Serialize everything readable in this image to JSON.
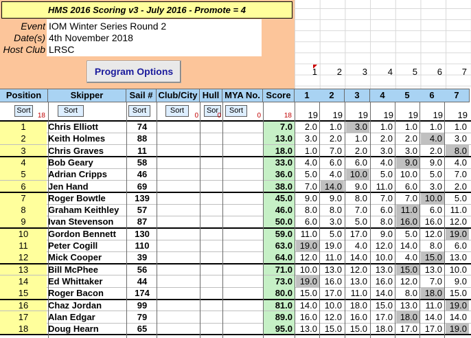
{
  "header": {
    "title": "HMS 2016 Scoring v3 - July 2016 - Promote = 4",
    "event_label": "Event",
    "event_value": "IOM Winter Series Round 2",
    "dates_label": "Date(s)",
    "dates_value": "4th November 2018",
    "club_label": "Host Club",
    "club_value": "LRSC",
    "program_button": "Program Options"
  },
  "race_numbers": [
    "1",
    "2",
    "3",
    "4",
    "5",
    "6",
    "7"
  ],
  "columns": {
    "position": "Position",
    "skipper": "Skipper",
    "sail": "Sail #",
    "club": "Club/City",
    "hull": "Hull",
    "mya": "MYA No.",
    "score": "Score",
    "races": [
      "1",
      "2",
      "3",
      "4",
      "5",
      "6",
      "7"
    ]
  },
  "sort": {
    "label": "Sort",
    "short_label": "Sor",
    "position_count": "18",
    "club_count": "0",
    "hull_count": "0",
    "mya_count": "0",
    "score_count": "18",
    "race_counts": [
      "19",
      "19",
      "19",
      "19",
      "19",
      "19",
      "19"
    ]
  },
  "rows": [
    {
      "pos": "1",
      "skipper": "Chris Elliott",
      "sail": "74",
      "score": "7.0",
      "races": [
        "2.0",
        "1.0",
        "3.0",
        "1.0",
        "1.0",
        "1.0",
        "1.0"
      ],
      "disc": 2
    },
    {
      "pos": "2",
      "skipper": "Keith Holmes",
      "sail": "88",
      "score": "13.0",
      "races": [
        "3.0",
        "2.0",
        "1.0",
        "2.0",
        "2.0",
        "4.0",
        "3.0"
      ],
      "disc": 5
    },
    {
      "pos": "3",
      "skipper": "Chris Graves",
      "sail": "11",
      "score": "18.0",
      "races": [
        "1.0",
        "7.0",
        "2.0",
        "3.0",
        "3.0",
        "2.0",
        "8.0"
      ],
      "disc": 6
    },
    {
      "pos": "4",
      "skipper": "Bob Geary",
      "sail": "58",
      "score": "33.0",
      "races": [
        "4.0",
        "6.0",
        "6.0",
        "4.0",
        "9.0",
        "9.0",
        "4.0"
      ],
      "disc": 4
    },
    {
      "pos": "5",
      "skipper": "Adrian Cripps",
      "sail": "46",
      "score": "36.0",
      "races": [
        "5.0",
        "4.0",
        "10.0",
        "5.0",
        "10.0",
        "5.0",
        "7.0"
      ],
      "disc": 2
    },
    {
      "pos": "6",
      "skipper": "Jen Hand",
      "sail": "69",
      "score": "38.0",
      "races": [
        "7.0",
        "14.0",
        "9.0",
        "11.0",
        "6.0",
        "3.0",
        "2.0"
      ],
      "disc": 1
    },
    {
      "pos": "7",
      "skipper": "Roger Bowtle",
      "sail": "139",
      "score": "45.0",
      "races": [
        "9.0",
        "9.0",
        "8.0",
        "7.0",
        "7.0",
        "10.0",
        "5.0"
      ],
      "disc": 5
    },
    {
      "pos": "8",
      "skipper": "Graham Keithley",
      "sail": "57",
      "score": "46.0",
      "races": [
        "8.0",
        "8.0",
        "7.0",
        "6.0",
        "11.0",
        "6.0",
        "11.0"
      ],
      "disc": 4
    },
    {
      "pos": "9",
      "skipper": "Ivan Stevenson",
      "sail": "87",
      "score": "50.0",
      "races": [
        "6.0",
        "3.0",
        "5.0",
        "8.0",
        "16.0",
        "16.0",
        "12.0"
      ],
      "disc": 4
    },
    {
      "pos": "10",
      "skipper": "Gordon Bennett",
      "sail": "130",
      "score": "59.0",
      "races": [
        "11.0",
        "5.0",
        "17.0",
        "9.0",
        "5.0",
        "12.0",
        "19.0"
      ],
      "disc": 6
    },
    {
      "pos": "11",
      "skipper": "Peter Cogill",
      "sail": "110",
      "score": "63.0",
      "races": [
        "19.0",
        "19.0",
        "4.0",
        "12.0",
        "14.0",
        "8.0",
        "6.0"
      ],
      "disc": 0
    },
    {
      "pos": "12",
      "skipper": "Mick Cooper",
      "sail": "39",
      "score": "64.0",
      "races": [
        "12.0",
        "11.0",
        "14.0",
        "10.0",
        "4.0",
        "15.0",
        "13.0"
      ],
      "disc": 5
    },
    {
      "pos": "13",
      "skipper": "Bill McPhee",
      "sail": "56",
      "score": "71.0",
      "races": [
        "10.0",
        "13.0",
        "12.0",
        "13.0",
        "15.0",
        "13.0",
        "10.0"
      ],
      "disc": 4
    },
    {
      "pos": "14",
      "skipper": "Ed Whittaker",
      "sail": "44",
      "score": "73.0",
      "races": [
        "19.0",
        "16.0",
        "13.0",
        "16.0",
        "12.0",
        "7.0",
        "9.0"
      ],
      "disc": 0
    },
    {
      "pos": "15",
      "skipper": "Roger Bacon",
      "sail": "174",
      "score": "80.0",
      "races": [
        "15.0",
        "17.0",
        "11.0",
        "14.0",
        "8.0",
        "18.0",
        "15.0"
      ],
      "disc": 5
    },
    {
      "pos": "16",
      "skipper": "Chaz  Jordan",
      "sail": "99",
      "score": "81.0",
      "races": [
        "14.0",
        "10.0",
        "18.0",
        "15.0",
        "13.0",
        "11.0",
        "19.0"
      ],
      "disc": 6
    },
    {
      "pos": "17",
      "skipper": "Alan Edgar",
      "sail": "79",
      "score": "89.0",
      "races": [
        "16.0",
        "12.0",
        "16.0",
        "17.0",
        "18.0",
        "14.0",
        "14.0"
      ],
      "disc": 4
    },
    {
      "pos": "18",
      "skipper": "Doug Hearn",
      "sail": "65",
      "score": "95.0",
      "races": [
        "13.0",
        "15.0",
        "15.0",
        "18.0",
        "17.0",
        "17.0",
        "19.0"
      ],
      "disc": 6
    }
  ],
  "colors": {
    "header_bg": "#fcc59a",
    "title_bg": "#ffff9c",
    "col_header_bg": "#a9d3f3",
    "position_bg": "#ffff9c",
    "score_bg": "#c6f0c6",
    "discard_bg": "#c0c0c0"
  }
}
